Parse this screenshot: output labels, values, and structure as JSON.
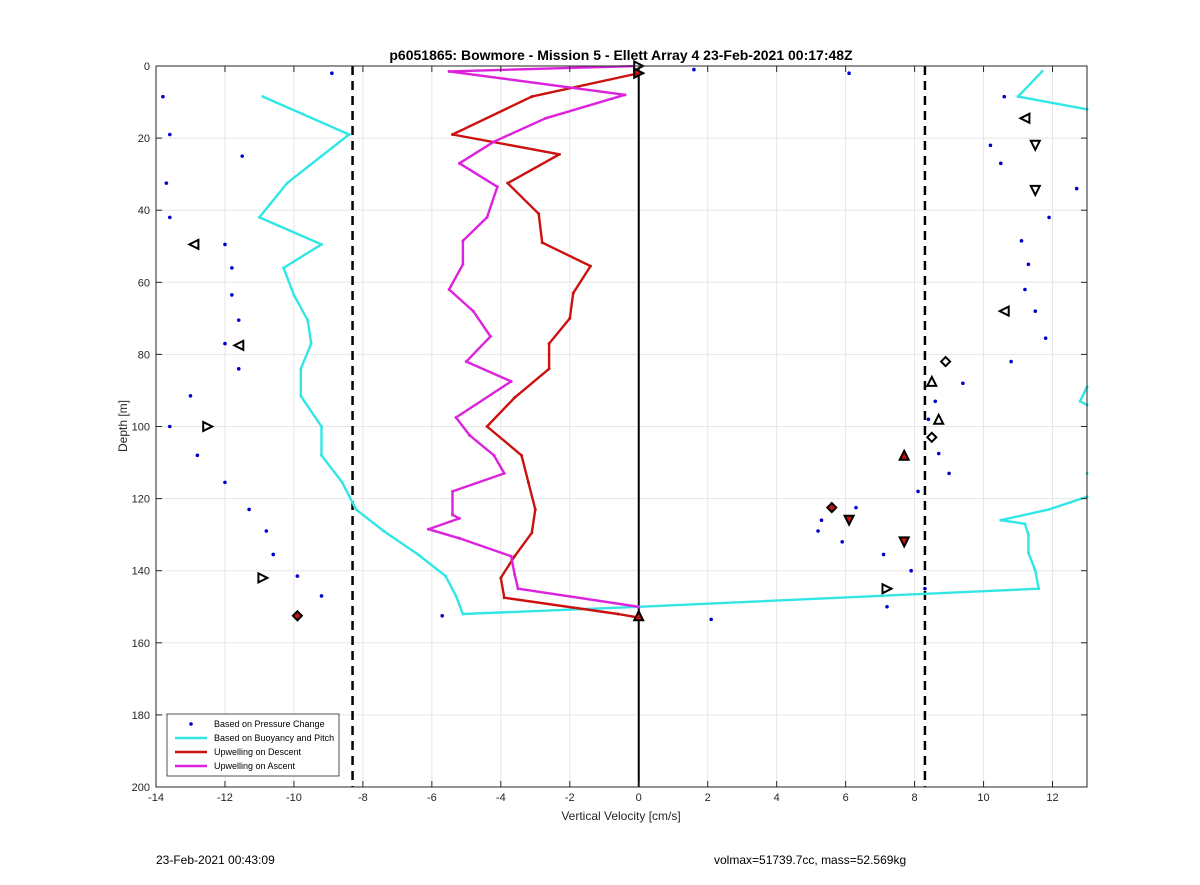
{
  "chart_data": {
    "type": "line",
    "title": "p6051865: Bowmore - Mission 5 - Ellett Array 4 23-Feb-2021 00:17:48Z",
    "xlabel": "Vertical Velocity [cm/s]",
    "ylabel": "Depth [m]",
    "xlim": [
      -14,
      13
    ],
    "ylim": [
      0,
      200
    ],
    "y_reversed": true,
    "grid": true,
    "x_ticks": [
      -14,
      -12,
      -10,
      -8,
      -6,
      -4,
      -2,
      0,
      2,
      4,
      6,
      8,
      10,
      12
    ],
    "y_ticks": [
      0,
      20,
      40,
      60,
      80,
      100,
      120,
      140,
      160,
      180,
      200
    ],
    "legend_location": "bottom-left",
    "colors": {
      "pressure": "#0000cc",
      "buoyancy": "#33e6e6",
      "descent": "#cc1111",
      "ascent": "#dd22dd",
      "axis": "#262626",
      "grid": "#e6e6e6"
    },
    "reference_lines": {
      "dashed_x": [
        -8.3,
        8.3
      ],
      "solid_x": 0
    },
    "series": [
      {
        "name": "Based on Pressure Change",
        "style": "dots",
        "points": [
          [
            -8.9,
            2
          ],
          [
            1.6,
            1
          ],
          [
            6.1,
            2
          ],
          [
            -13.8,
            8.5
          ],
          [
            10.6,
            8.5
          ],
          [
            -13.6,
            19
          ],
          [
            11.2,
            14.5
          ],
          [
            -11.5,
            25
          ],
          [
            10.2,
            22
          ],
          [
            10.5,
            27
          ],
          [
            12.7,
            34
          ],
          [
            -13.7,
            32.5
          ],
          [
            -13.6,
            42
          ],
          [
            11.9,
            42
          ],
          [
            -12,
            49.5
          ],
          [
            11.1,
            48.5
          ],
          [
            -11.8,
            56
          ],
          [
            11.3,
            55
          ],
          [
            -11.8,
            63.5
          ],
          [
            11.2,
            62
          ],
          [
            -11.6,
            70.5
          ],
          [
            11.5,
            68
          ],
          [
            -12,
            77
          ],
          [
            11.8,
            75.5
          ],
          [
            -11.6,
            84
          ],
          [
            10.8,
            82
          ],
          [
            -13,
            91.5
          ],
          [
            9.4,
            88
          ],
          [
            8.6,
            93
          ],
          [
            -13.6,
            100
          ],
          [
            8.4,
            98
          ],
          [
            8.5,
            103
          ],
          [
            8.7,
            107.5
          ],
          [
            -12.8,
            108
          ],
          [
            9.0,
            113
          ],
          [
            -12.0,
            115.5
          ],
          [
            8.1,
            118
          ],
          [
            -11.3,
            123
          ],
          [
            6.3,
            122.5
          ],
          [
            5.3,
            126
          ],
          [
            -10.8,
            129
          ],
          [
            5.2,
            129
          ],
          [
            -10.6,
            135.5
          ],
          [
            5.9,
            132
          ],
          [
            7.1,
            135.5
          ],
          [
            -9.9,
            141.5
          ],
          [
            7.9,
            140
          ],
          [
            -9.2,
            147
          ],
          [
            8.3,
            145
          ],
          [
            7.2,
            150
          ],
          [
            -5.7,
            152.5
          ],
          [
            2.1,
            153.5
          ]
        ]
      },
      {
        "name": "Based on Buoyancy and Pitch",
        "style": "line",
        "points": [
          [
            -10.9,
            8.5
          ],
          [
            -8.4,
            19
          ],
          [
            -9.2,
            25
          ],
          [
            -10.2,
            32.5
          ],
          [
            -11,
            42
          ],
          [
            -9.2,
            49.5
          ],
          [
            -10.3,
            56
          ],
          [
            -10,
            63.5
          ],
          [
            -9.6,
            70.5
          ],
          [
            -9.5,
            77
          ],
          [
            -9.8,
            84
          ],
          [
            -9.8,
            91.5
          ],
          [
            -9.2,
            100
          ],
          [
            -9.2,
            108
          ],
          [
            -8.6,
            115.5
          ],
          [
            -8.2,
            123
          ],
          [
            -7.4,
            129
          ],
          [
            -6.4,
            135.5
          ],
          [
            -5.6,
            141.5
          ],
          [
            -5.3,
            147
          ],
          [
            -5.1,
            152
          ],
          [
            0,
            150
          ],
          [
            11.6,
            145
          ],
          [
            11.5,
            140
          ],
          [
            11.3,
            135
          ],
          [
            11.3,
            130
          ],
          [
            11.2,
            127
          ],
          [
            10.5,
            126
          ],
          [
            11.9,
            123
          ],
          [
            13,
            119.5
          ],
          [
            null,
            null
          ],
          [
            13,
            113
          ],
          [
            null,
            null
          ],
          [
            13,
            89
          ],
          [
            12.8,
            93
          ],
          [
            13,
            94
          ],
          [
            null,
            null
          ],
          [
            13,
            12
          ],
          [
            11,
            8.5
          ],
          [
            11.7,
            1.5
          ]
        ]
      },
      {
        "name": "Upwelling on Descent",
        "style": "line",
        "points": [
          [
            0,
            2
          ],
          [
            -3.1,
            8.5
          ],
          [
            -5.4,
            19
          ],
          [
            -2.3,
            24.5
          ],
          [
            -3.8,
            32.5
          ],
          [
            -2.9,
            41
          ],
          [
            -2.8,
            49
          ],
          [
            -1.4,
            55.5
          ],
          [
            -1.9,
            63
          ],
          [
            -2,
            70
          ],
          [
            -2.6,
            77
          ],
          [
            -2.6,
            84
          ],
          [
            -3.6,
            92
          ],
          [
            -4.4,
            100
          ],
          [
            -3.4,
            108
          ],
          [
            -3.2,
            115.5
          ],
          [
            -3,
            123
          ],
          [
            -3.1,
            129.5
          ],
          [
            -3.6,
            136
          ],
          [
            -4,
            142
          ],
          [
            -3.9,
            147.5
          ],
          [
            -0.6,
            152
          ],
          [
            0,
            153
          ]
        ]
      },
      {
        "name": "Upwelling on Ascent",
        "style": "line",
        "points": [
          [
            0,
            0
          ],
          [
            -5.5,
            1.5
          ],
          [
            -0.4,
            8
          ],
          [
            -2.7,
            14.5
          ],
          [
            -4.2,
            21
          ],
          [
            -5.2,
            27
          ],
          [
            -4.1,
            33.5
          ],
          [
            -4.4,
            42
          ],
          [
            -5.1,
            48.5
          ],
          [
            -5.1,
            55
          ],
          [
            -5.5,
            62
          ],
          [
            -4.8,
            68
          ],
          [
            -4.3,
            75
          ],
          [
            -5.0,
            82
          ],
          [
            -3.7,
            87.5
          ],
          [
            -5.3,
            97.5
          ],
          [
            -4.9,
            102.5
          ],
          [
            -4.2,
            108
          ],
          [
            -3.9,
            113
          ],
          [
            -5.4,
            118
          ],
          [
            -5.4,
            124.5
          ],
          [
            -5.2,
            125.5
          ],
          [
            -6.1,
            128.5
          ],
          [
            -5.2,
            131
          ],
          [
            -3.7,
            136
          ],
          [
            -3.6,
            141
          ],
          [
            -3.5,
            145
          ],
          [
            0,
            150
          ]
        ]
      }
    ],
    "markers": [
      {
        "x": -12.9,
        "y": 49.5,
        "shape": "tri-left",
        "fill": "none"
      },
      {
        "x": -11.6,
        "y": 77.5,
        "shape": "tri-left",
        "fill": "none"
      },
      {
        "x": -12.5,
        "y": 100,
        "shape": "tri-right",
        "fill": "none"
      },
      {
        "x": -10.9,
        "y": 142,
        "shape": "tri-right",
        "fill": "none"
      },
      {
        "x": -9.9,
        "y": 152.5,
        "shape": "diamond",
        "fill": "#cc1111"
      },
      {
        "x": 0,
        "y": 0,
        "shape": "tri-right",
        "fill": "none"
      },
      {
        "x": 0,
        "y": 2,
        "shape": "tri-right",
        "fill": "#cc1111"
      },
      {
        "x": 0,
        "y": 152.5,
        "shape": "tri-up",
        "fill": "#cc1111"
      },
      {
        "x": 11.2,
        "y": 14.5,
        "shape": "tri-left",
        "fill": "none"
      },
      {
        "x": 11.5,
        "y": 22,
        "shape": "tri-down",
        "fill": "none"
      },
      {
        "x": 11.5,
        "y": 34.5,
        "shape": "tri-down",
        "fill": "none"
      },
      {
        "x": 10.6,
        "y": 68,
        "shape": "tri-left",
        "fill": "none"
      },
      {
        "x": 8.9,
        "y": 82,
        "shape": "diamond",
        "fill": "none"
      },
      {
        "x": 8.5,
        "y": 87.5,
        "shape": "tri-up",
        "fill": "none"
      },
      {
        "x": 8.7,
        "y": 98,
        "shape": "tri-up",
        "fill": "none"
      },
      {
        "x": 8.5,
        "y": 103,
        "shape": "diamond",
        "fill": "none"
      },
      {
        "x": 7.7,
        "y": 108,
        "shape": "tri-up",
        "fill": "#cc1111"
      },
      {
        "x": 5.6,
        "y": 122.5,
        "shape": "diamond",
        "fill": "#cc1111"
      },
      {
        "x": 6.1,
        "y": 126,
        "shape": "tri-down",
        "fill": "#cc1111"
      },
      {
        "x": 7.7,
        "y": 132,
        "shape": "tri-down",
        "fill": "#cc1111"
      },
      {
        "x": 7.2,
        "y": 145,
        "shape": "tri-right",
        "fill": "none"
      }
    ]
  },
  "footer": {
    "timestamp": "23-Feb-2021 00:43:09",
    "vol_mass": "volmax=51739.7cc, mass=52.569kg"
  }
}
